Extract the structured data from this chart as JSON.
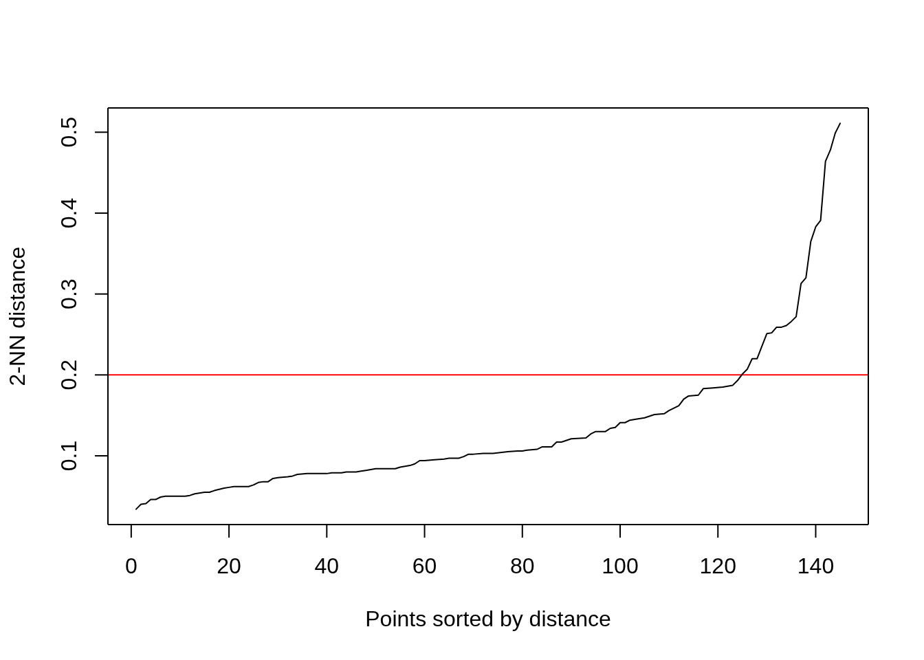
{
  "chart_data": {
    "type": "line",
    "xlabel": "Points sorted by distance",
    "ylabel": "2-NN distance",
    "x": [
      1,
      2,
      3,
      4,
      5,
      6,
      7,
      10,
      11,
      12,
      13,
      15,
      16,
      17,
      19,
      20,
      21,
      24,
      25,
      26,
      27,
      28,
      29,
      30,
      32,
      33,
      34,
      36,
      40,
      41,
      43,
      44,
      46,
      47,
      48,
      50,
      54,
      55,
      56,
      57,
      58,
      59,
      60,
      62,
      64,
      65,
      67,
      68,
      69,
      70,
      72,
      74,
      77,
      79,
      80,
      81,
      83,
      84,
      86,
      87,
      88,
      90,
      93,
      94,
      95,
      97,
      98,
      99,
      100,
      101,
      102,
      103,
      105,
      107,
      109,
      110,
      112,
      113,
      114,
      116,
      117,
      119,
      121,
      122,
      123,
      124,
      125,
      126,
      127,
      128,
      130,
      131,
      132,
      133,
      134,
      135,
      136,
      137,
      138,
      139,
      140,
      141,
      142,
      143,
      144,
      145
    ],
    "series": [
      {
        "color": "#000000",
        "values": [
          0.034,
          0.04,
          0.041,
          0.046,
          0.046,
          0.049,
          0.05,
          0.05,
          0.05,
          0.051,
          0.053,
          0.055,
          0.055,
          0.057,
          0.06,
          0.061,
          0.062,
          0.062,
          0.064,
          0.067,
          0.068,
          0.068,
          0.072,
          0.073,
          0.074,
          0.075,
          0.077,
          0.078,
          0.078,
          0.079,
          0.079,
          0.08,
          0.08,
          0.081,
          0.082,
          0.084,
          0.084,
          0.086,
          0.087,
          0.088,
          0.09,
          0.094,
          0.094,
          0.095,
          0.096,
          0.097,
          0.097,
          0.099,
          0.102,
          0.102,
          0.103,
          0.103,
          0.105,
          0.106,
          0.106,
          0.107,
          0.108,
          0.111,
          0.111,
          0.117,
          0.117,
          0.121,
          0.122,
          0.127,
          0.13,
          0.13,
          0.134,
          0.135,
          0.141,
          0.141,
          0.144,
          0.145,
          0.147,
          0.151,
          0.152,
          0.156,
          0.162,
          0.17,
          0.174,
          0.175,
          0.183,
          0.184,
          0.185,
          0.186,
          0.187,
          0.193,
          0.201,
          0.207,
          0.22,
          0.22,
          0.251,
          0.252,
          0.259,
          0.259,
          0.261,
          0.266,
          0.272,
          0.313,
          0.32,
          0.365,
          0.383,
          0.391,
          0.464,
          0.478,
          0.499,
          0.511
        ]
      }
    ],
    "xlim": [
      -4.76,
      150.76
    ],
    "ylim": [
      0.015,
      0.53
    ],
    "xticks": [
      0,
      20,
      40,
      60,
      80,
      100,
      120,
      140
    ],
    "yticks": [
      0.1,
      0.2,
      0.3,
      0.4,
      0.5
    ],
    "ref_lines": [
      {
        "axis": "y",
        "value": 0.2,
        "color": "#ff0000"
      }
    ],
    "marker": "none",
    "line_style": "solid"
  }
}
